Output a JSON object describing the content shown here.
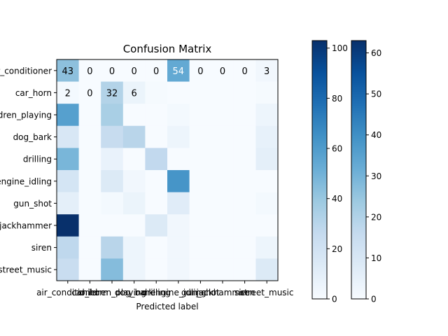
{
  "chart_data": {
    "type": "heatmap",
    "title": "Confusion Matrix",
    "xlabel": "Predicted label",
    "ylabel": "",
    "row_labels": [
      "air_conditioner",
      "car_horn",
      "children_playing",
      "dog_bark",
      "drilling",
      "engine_idling",
      "gun_shot",
      "jackhammer",
      "siren",
      "street_music"
    ],
    "col_labels": [
      "air_conditioner",
      "car_horn",
      "children_playing",
      "dog_bark",
      "drilling",
      "engine_idling",
      "gun_shot",
      "jackhammer",
      "siren",
      "street_music"
    ],
    "values": [
      [
        43,
        0,
        0,
        0,
        0,
        54,
        0,
        0,
        0,
        3
      ],
      [
        2,
        0,
        32,
        6,
        1,
        0,
        0,
        0,
        0,
        1
      ],
      [
        58,
        0,
        35,
        0,
        0,
        2,
        0,
        0,
        0,
        5
      ],
      [
        16,
        0,
        25,
        30,
        0,
        5,
        0,
        0,
        0,
        8
      ],
      [
        48,
        0,
        7,
        0,
        27,
        0,
        0,
        0,
        0,
        10
      ],
      [
        18,
        0,
        14,
        3,
        0,
        63,
        0,
        0,
        0,
        0
      ],
      [
        10,
        0,
        2,
        6,
        0,
        12,
        0,
        0,
        0,
        2
      ],
      [
        103,
        0,
        0,
        0,
        14,
        3,
        0,
        0,
        0,
        0
      ],
      [
        28,
        0,
        30,
        5,
        0,
        3,
        0,
        0,
        0,
        5
      ],
      [
        24,
        0,
        45,
        5,
        0,
        3,
        0,
        0,
        0,
        14
      ]
    ],
    "annotated_rows": [
      [
        "43",
        "0",
        "0",
        "0",
        "0",
        "54",
        "0",
        "0",
        "0",
        "3"
      ],
      [
        "2",
        "0",
        "32",
        "6",
        "",
        "",
        "",
        "",
        "",
        ""
      ]
    ],
    "colorbars": [
      {
        "range": [
          0,
          103
        ],
        "ticks": [
          0,
          20,
          40,
          60,
          80,
          100
        ]
      },
      {
        "range": [
          0,
          63
        ],
        "ticks": [
          0,
          10,
          20,
          30,
          40,
          50,
          60
        ]
      }
    ],
    "colormap": [
      "#f7fbff",
      "#deebf7",
      "#c6dbef",
      "#9ecae1",
      "#6baed6",
      "#4292c6",
      "#2171b5",
      "#08519c",
      "#08306b"
    ]
  }
}
